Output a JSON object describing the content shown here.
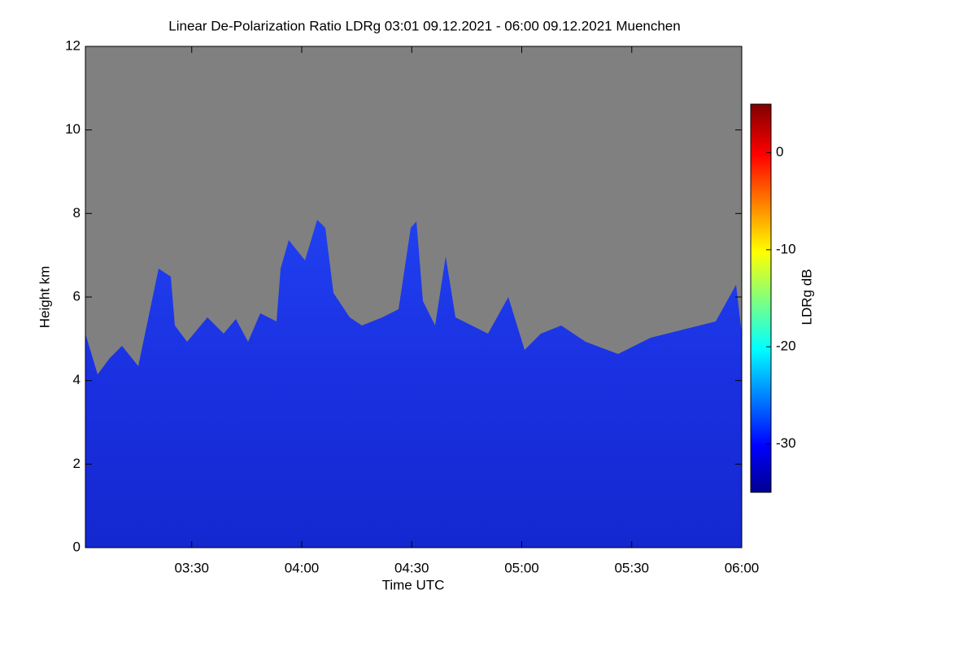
{
  "chart_data": {
    "type": "heatmap",
    "title": "Linear De-Polarization Ratio LDRg   03:01 09.12.2021 - 06:00 09.12.2021 Muenchen",
    "x_label": "Time UTC",
    "y_label": "Height km",
    "colorbar_label": "LDRg dB",
    "xlim": [
      181,
      360
    ],
    "xticks": [
      {
        "value": 210,
        "label": "03:30"
      },
      {
        "value": 240,
        "label": "04:00"
      },
      {
        "value": 270,
        "label": "04:30"
      },
      {
        "value": 300,
        "label": "05:00"
      },
      {
        "value": 330,
        "label": "05:30"
      },
      {
        "value": 360,
        "label": "06:00"
      }
    ],
    "ylim": [
      0,
      12
    ],
    "yticks": [
      0,
      2,
      4,
      6,
      8,
      10,
      12
    ],
    "zlim": [
      -35,
      5
    ],
    "zticks": [
      0,
      -10,
      -20,
      -30
    ]
  }
}
